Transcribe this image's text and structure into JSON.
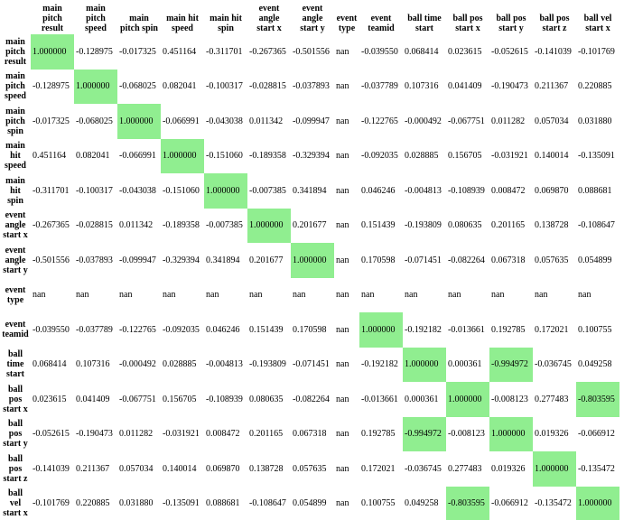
{
  "table": {
    "columns": [
      "main pitch result",
      "main pitch speed",
      "main pitch spin",
      "main hit speed",
      "main hit spin",
      "event angle start x",
      "event angle start y",
      "event type",
      "event teamid",
      "ball time start",
      "ball pos start x",
      "ball pos start y",
      "ball pos start z",
      "ball vel start x"
    ],
    "row_labels": [
      "main pitch result",
      "main pitch speed",
      "main pitch spin",
      "main hit speed",
      "main hit spin",
      "event angle start x",
      "event angle start y",
      "event type",
      "event teamid",
      "ball time start",
      "ball pos start x",
      "ball pos start y",
      "ball pos start z",
      "ball vel start x"
    ],
    "rows": [
      [
        "1.000000",
        "-0.128975",
        "-0.017325",
        "0.451164",
        "-0.311701",
        "-0.267365",
        "-0.501556",
        "nan",
        "-0.039550",
        "0.068414",
        "0.023615",
        "-0.052615",
        "-0.141039",
        "-0.101769"
      ],
      [
        "-0.128975",
        "1.000000",
        "-0.068025",
        "0.082041",
        "-0.100317",
        "-0.028815",
        "-0.037893",
        "nan",
        "-0.037789",
        "0.107316",
        "0.041409",
        "-0.190473",
        "0.211367",
        "0.220885"
      ],
      [
        "-0.017325",
        "-0.068025",
        "1.000000",
        "-0.066991",
        "-0.043038",
        "0.011342",
        "-0.099947",
        "nan",
        "-0.122765",
        "-0.000492",
        "-0.067751",
        "0.011282",
        "0.057034",
        "0.031880"
      ],
      [
        "0.451164",
        "0.082041",
        "-0.066991",
        "1.000000",
        "-0.151060",
        "-0.189358",
        "-0.329394",
        "nan",
        "-0.092035",
        "0.028885",
        "0.156705",
        "-0.031921",
        "0.140014",
        "-0.135091"
      ],
      [
        "-0.311701",
        "-0.100317",
        "-0.043038",
        "-0.151060",
        "1.000000",
        "-0.007385",
        "0.341894",
        "nan",
        "0.046246",
        "-0.004813",
        "-0.108939",
        "0.008472",
        "0.069870",
        "0.088681"
      ],
      [
        "-0.267365",
        "-0.028815",
        "0.011342",
        "-0.189358",
        "-0.007385",
        "1.000000",
        "0.201677",
        "nan",
        "0.151439",
        "-0.193809",
        "0.080635",
        "0.201165",
        "0.138728",
        "-0.108647"
      ],
      [
        "-0.501556",
        "-0.037893",
        "-0.099947",
        "-0.329394",
        "0.341894",
        "0.201677",
        "1.000000",
        "nan",
        "0.170598",
        "-0.071451",
        "-0.082264",
        "0.067318",
        "0.057635",
        "0.054899"
      ],
      [
        "nan",
        "nan",
        "nan",
        "nan",
        "nan",
        "nan",
        "nan",
        "nan",
        "nan",
        "nan",
        "nan",
        "nan",
        "nan",
        "nan"
      ],
      [
        "-0.039550",
        "-0.037789",
        "-0.122765",
        "-0.092035",
        "0.046246",
        "0.151439",
        "0.170598",
        "nan",
        "1.000000",
        "-0.192182",
        "-0.013661",
        "0.192785",
        "0.172021",
        "0.100755"
      ],
      [
        "0.068414",
        "0.107316",
        "-0.000492",
        "0.028885",
        "-0.004813",
        "-0.193809",
        "-0.071451",
        "nan",
        "-0.192182",
        "1.000000",
        "0.000361",
        "-0.994972",
        "-0.036745",
        "0.049258"
      ],
      [
        "0.023615",
        "0.041409",
        "-0.067751",
        "0.156705",
        "-0.108939",
        "0.080635",
        "-0.082264",
        "nan",
        "-0.013661",
        "0.000361",
        "1.000000",
        "-0.008123",
        "0.277483",
        "-0.803595"
      ],
      [
        "-0.052615",
        "-0.190473",
        "0.011282",
        "-0.031921",
        "0.008472",
        "0.201165",
        "0.067318",
        "nan",
        "0.192785",
        "-0.994972",
        "-0.008123",
        "1.000000",
        "0.019326",
        "-0.066912"
      ],
      [
        "-0.141039",
        "0.211367",
        "0.057034",
        "0.140014",
        "0.069870",
        "0.138728",
        "0.057635",
        "nan",
        "0.172021",
        "-0.036745",
        "0.277483",
        "0.019326",
        "1.000000",
        "-0.135472"
      ],
      [
        "-0.101769",
        "0.220885",
        "0.031880",
        "-0.135091",
        "0.088681",
        "-0.108647",
        "0.054899",
        "nan",
        "0.100755",
        "0.049258",
        "-0.803595",
        "-0.066912",
        "-0.135472",
        "1.000000"
      ]
    ]
  }
}
